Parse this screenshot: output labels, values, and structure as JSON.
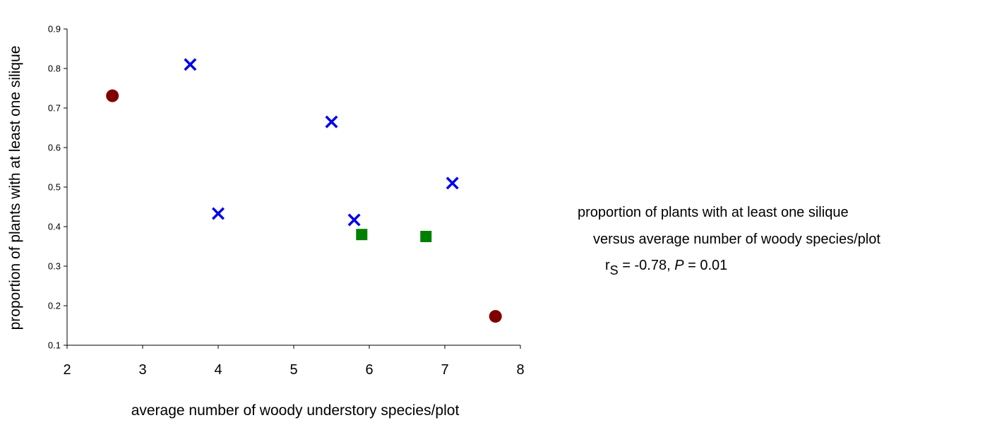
{
  "chart_data": {
    "type": "scatter",
    "xlabel": "average number of woody understory species/plot",
    "ylabel": "proportion of plants with at least one silique",
    "xlim": [
      2,
      8
    ],
    "ylim": [
      0.1,
      0.9
    ],
    "x_ticks": [
      "2",
      "3",
      "4",
      "5",
      "6",
      "7",
      "8"
    ],
    "y_ticks": [
      "0.1",
      "0.2",
      "0.3",
      "0.4",
      "0.5",
      "0.6",
      "0.7",
      "0.8",
      "0.9"
    ],
    "grid": false,
    "series": [
      {
        "marker": "x",
        "color": "#0000ee",
        "points": [
          {
            "x": 3.63,
            "y": 0.81
          },
          {
            "x": 4.0,
            "y": 0.433
          },
          {
            "x": 5.5,
            "y": 0.665
          },
          {
            "x": 5.8,
            "y": 0.417
          },
          {
            "x": 7.1,
            "y": 0.51
          }
        ]
      },
      {
        "marker": "circle",
        "color": "#800000",
        "points": [
          {
            "x": 2.6,
            "y": 0.731
          },
          {
            "x": 7.67,
            "y": 0.173
          }
        ]
      },
      {
        "marker": "square",
        "color": "#008000",
        "points": [
          {
            "x": 5.9,
            "y": 0.38
          },
          {
            "x": 6.75,
            "y": 0.375
          }
        ]
      }
    ]
  },
  "annotation": {
    "line1": "proportion of plants with at least one silique",
    "line2": "versus average number of woody species/plot",
    "stat_r": "r",
    "stat_sub": "S",
    "stat_eq": " = -0.78, ",
    "stat_p": "P",
    "stat_rest": " = 0.01"
  }
}
